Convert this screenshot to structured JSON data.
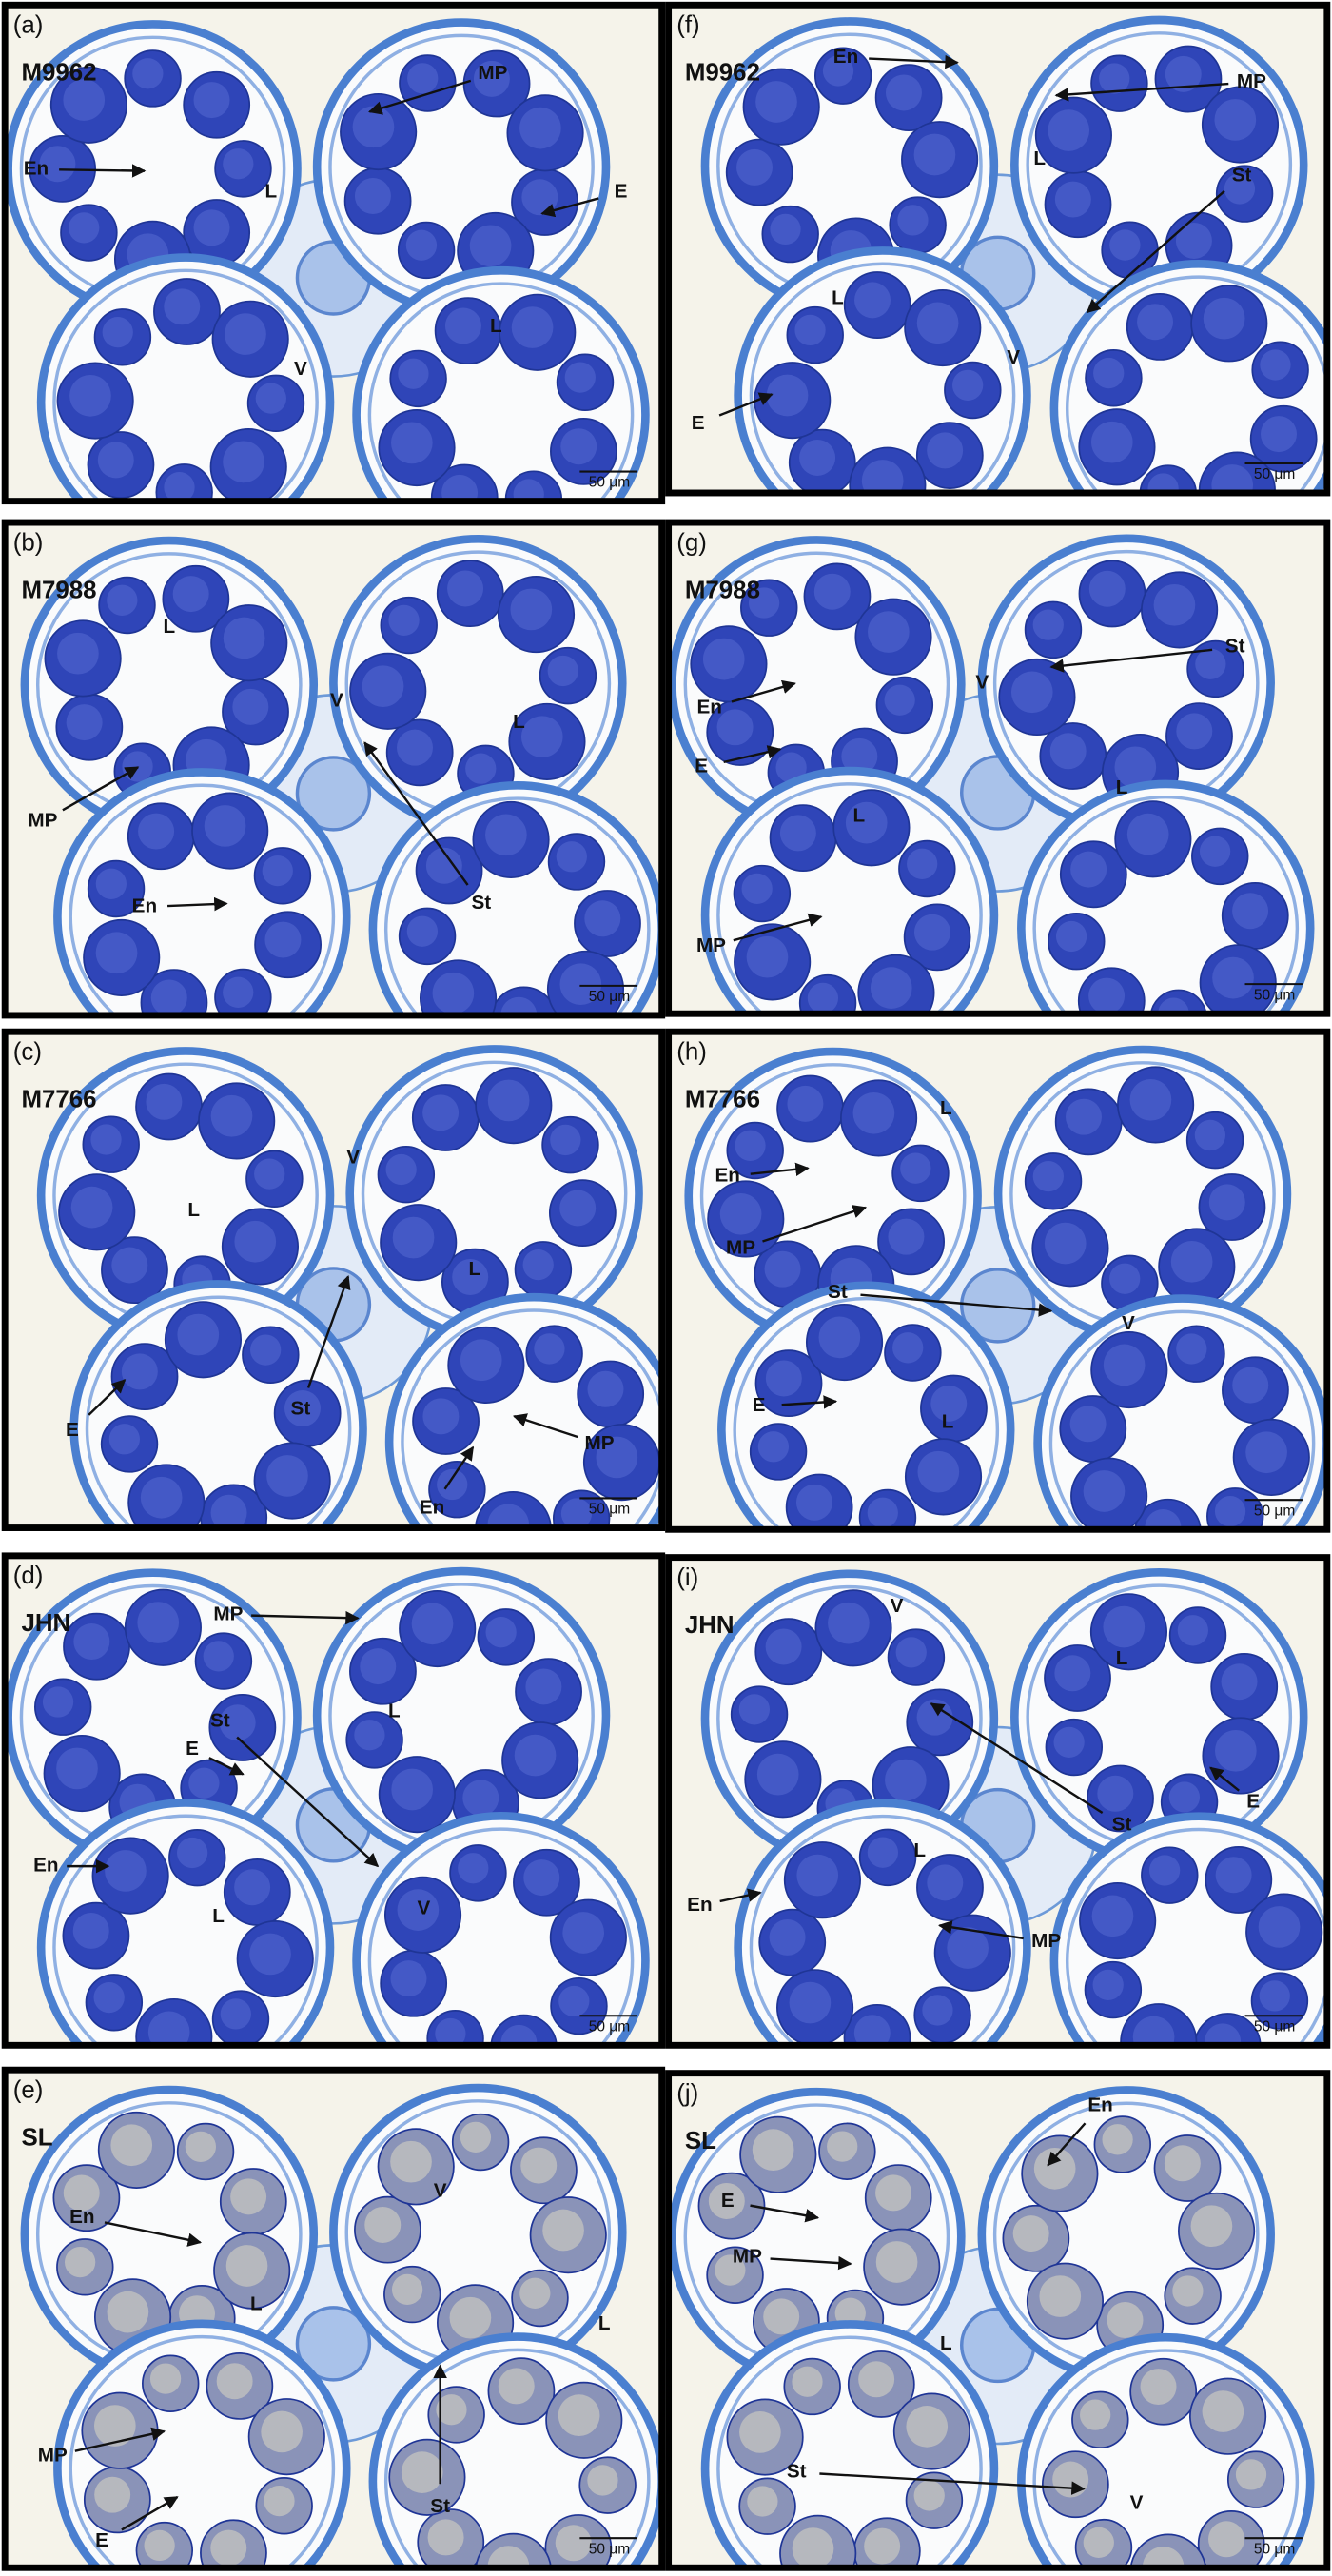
{
  "panels": [
    {
      "label": "(a)",
      "strain": "M9962",
      "annotations": [
        "MP",
        "En",
        "L",
        "E",
        "L",
        "V"
      ],
      "scale_bar": "50 μm"
    },
    {
      "label": "(b)",
      "strain": "M7988",
      "annotations": [
        "L",
        "V",
        "L",
        "MP",
        "St",
        "En"
      ],
      "scale_bar": "50 μm"
    },
    {
      "label": "(c)",
      "strain": "M7766",
      "annotations": [
        "V",
        "L",
        "L",
        "St",
        "E",
        "MP",
        "En"
      ],
      "scale_bar": "50 μm"
    },
    {
      "label": "(d)",
      "strain": "JHN",
      "annotations": [
        "MP",
        "L",
        "St",
        "E",
        "En",
        "L",
        "V"
      ],
      "scale_bar": "50 μm"
    },
    {
      "label": "(e)",
      "strain": "SL",
      "annotations": [
        "V",
        "En",
        "L",
        "L",
        "MP",
        "St",
        "E"
      ],
      "scale_bar": "50 μm"
    },
    {
      "label": "(f)",
      "strain": "M9962",
      "annotations": [
        "En",
        "MP",
        "L",
        "St",
        "L",
        "V",
        "E"
      ],
      "scale_bar": "50 μm"
    },
    {
      "label": "(g)",
      "strain": "M7988",
      "annotations": [
        "St",
        "V",
        "En",
        "E",
        "L",
        "L",
        "MP"
      ],
      "scale_bar": "50 μm"
    },
    {
      "label": "(h)",
      "strain": "M7766",
      "annotations": [
        "L",
        "En",
        "MP",
        "St",
        "V",
        "E",
        "L"
      ],
      "scale_bar": "50 μm"
    },
    {
      "label": "(i)",
      "strain": "JHN",
      "annotations": [
        "V",
        "L",
        "St",
        "E",
        "L",
        "En",
        "MP"
      ],
      "scale_bar": "50 μm"
    },
    {
      "label": "(j)",
      "strain": "SL",
      "annotations": [
        "En",
        "E",
        "L",
        "MP",
        "St",
        "V"
      ],
      "scale_bar": "50 μm"
    }
  ]
}
